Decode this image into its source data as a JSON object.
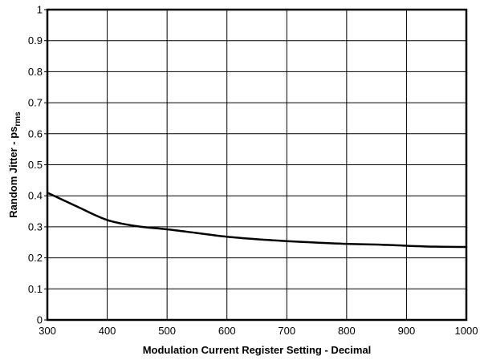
{
  "chart_data": {
    "type": "line",
    "title": "",
    "xlabel": "Modulation Current Register Setting - Decimal",
    "ylabel": {
      "main": "Random Jitter - ps",
      "subscript": "rms"
    },
    "xlim": [
      300,
      1000
    ],
    "ylim": [
      0,
      1
    ],
    "x_ticks": [
      "300",
      "400",
      "500",
      "600",
      "700",
      "800",
      "900",
      "1000"
    ],
    "y_ticks": [
      "0",
      "0.1",
      "0.2",
      "0.3",
      "0.4",
      "0.5",
      "0.6",
      "0.7",
      "0.8",
      "0.9",
      "1"
    ],
    "grid": true,
    "series": [
      {
        "x": [
          300,
          350,
          400,
          450,
          500,
          550,
          600,
          650,
          700,
          750,
          800,
          850,
          900,
          950,
          1000
        ],
        "y": [
          0.41,
          0.365,
          0.322,
          0.302,
          0.292,
          0.28,
          0.268,
          0.26,
          0.254,
          0.249,
          0.245,
          0.243,
          0.239,
          0.236,
          0.235
        ]
      }
    ],
    "colors": {
      "line": "#000000",
      "grid": "#000000",
      "background": "#ffffff"
    }
  }
}
